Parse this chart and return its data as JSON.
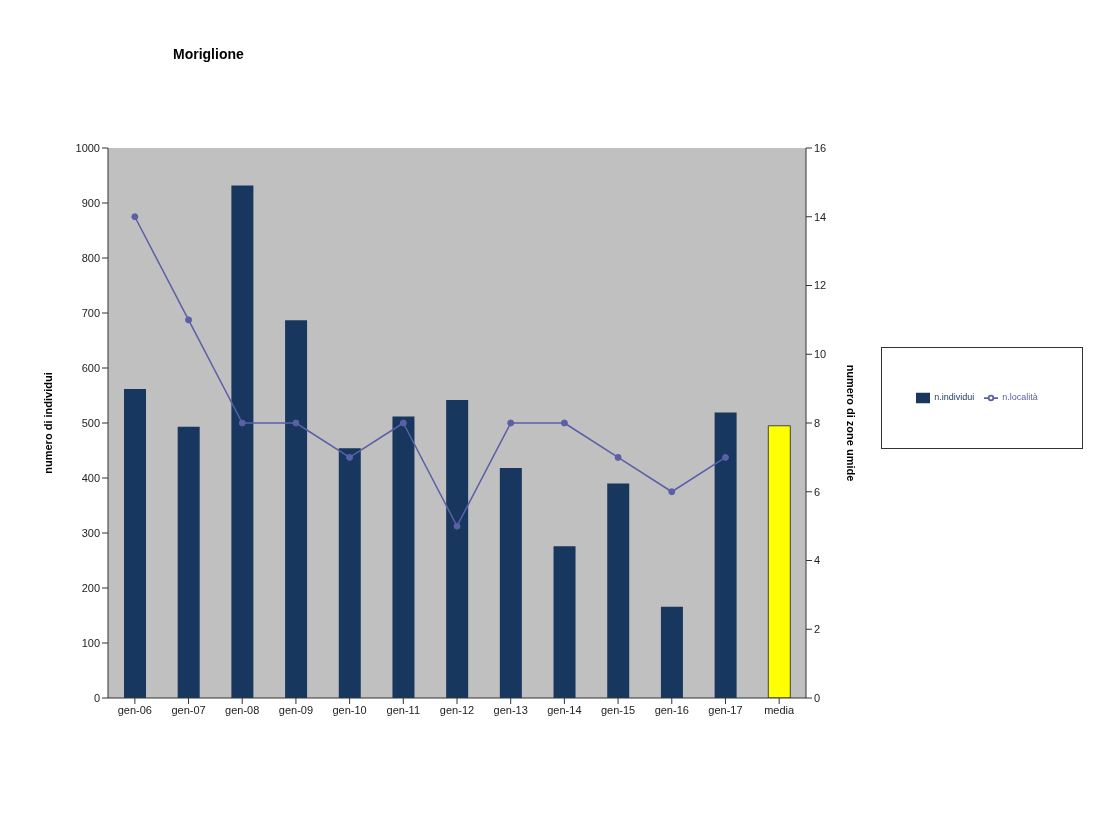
{
  "chart_data": {
    "type": "bar",
    "title": "Moriglione",
    "ylabel": "numero di individui",
    "y2label": "numero di zone umide",
    "categories": [
      "gen-06",
      "gen-07",
      "gen-08",
      "gen-09",
      "gen-10",
      "gen-11",
      "gen-12",
      "gen-13",
      "gen-14",
      "gen-15",
      "gen-16",
      "gen-17",
      "media"
    ],
    "series": [
      {
        "name": "n.individui",
        "color": "#17375e",
        "colors": [
          "#17375e",
          "#17375e",
          "#17375e",
          "#17375e",
          "#17375e",
          "#17375e",
          "#17375e",
          "#17375e",
          "#17375e",
          "#17375e",
          "#17375e",
          "#17375e",
          "#ffff00"
        ],
        "values": [
          562,
          493,
          932,
          687,
          454,
          512,
          542,
          418,
          276,
          390,
          166,
          519,
          495
        ]
      },
      {
        "name": "n.località",
        "type": "line",
        "axis": "y2",
        "color": "#5a5fa6",
        "marker": "circle",
        "values": [
          14,
          11,
          8,
          8,
          7,
          8,
          5,
          8,
          8,
          7,
          6,
          7,
          null
        ]
      }
    ],
    "ylim": [
      0,
      1000
    ],
    "yticks": [
      0,
      100,
      200,
      300,
      400,
      500,
      600,
      700,
      800,
      900,
      1000
    ],
    "y2lim": [
      0,
      16
    ],
    "y2ticks": [
      0,
      2,
      4,
      6,
      8,
      10,
      12,
      14,
      16
    ],
    "grid": false,
    "legend": "right"
  }
}
